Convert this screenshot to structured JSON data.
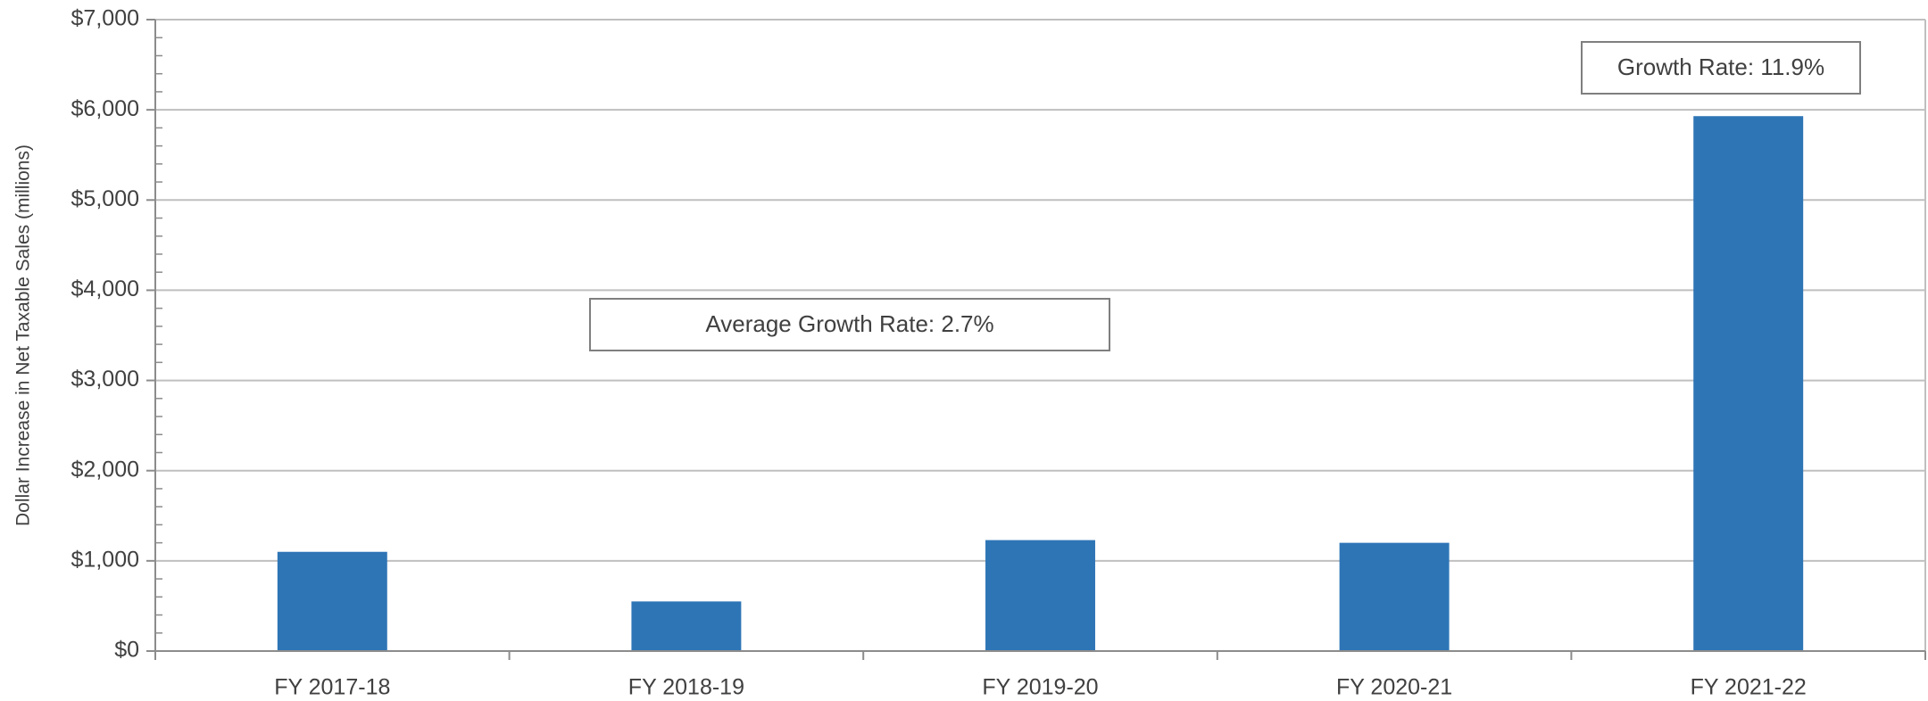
{
  "chart_data": {
    "type": "bar",
    "y_label": "Dollar Increase in Net Taxable Sales (millions)",
    "categories": [
      "FY 2017-18",
      "FY 2018-19",
      "FY 2019-20",
      "FY 2020-21",
      "FY 2021-22"
    ],
    "values": [
      1100,
      550,
      1230,
      1200,
      5930
    ],
    "color": "#2e75b6",
    "ylim": [
      0,
      7000
    ],
    "yticks": [
      {
        "value": 0,
        "label": "$0"
      },
      {
        "value": 1000,
        "label": "$1,000"
      },
      {
        "value": 2000,
        "label": "$2,000"
      },
      {
        "value": 3000,
        "label": "$3,000"
      },
      {
        "value": 4000,
        "label": "$4,000"
      },
      {
        "value": 5000,
        "label": "$5,000"
      },
      {
        "value": 6000,
        "label": "$6,000"
      },
      {
        "value": 7000,
        "label": "$7,000"
      }
    ],
    "minor_yticks": [
      200,
      400,
      600,
      800,
      1200,
      1400,
      1600,
      1800,
      2200,
      2400,
      2600,
      2800,
      3200,
      3400,
      3600,
      3800,
      4200,
      4400,
      4600,
      4800,
      5200,
      5400,
      5600,
      5800,
      6200,
      6400,
      6600,
      6800
    ],
    "grid": true,
    "annotations": [
      {
        "text": "Average Growth Rate: 2.7%"
      },
      {
        "text": "Growth Rate: 11.9%"
      }
    ]
  }
}
